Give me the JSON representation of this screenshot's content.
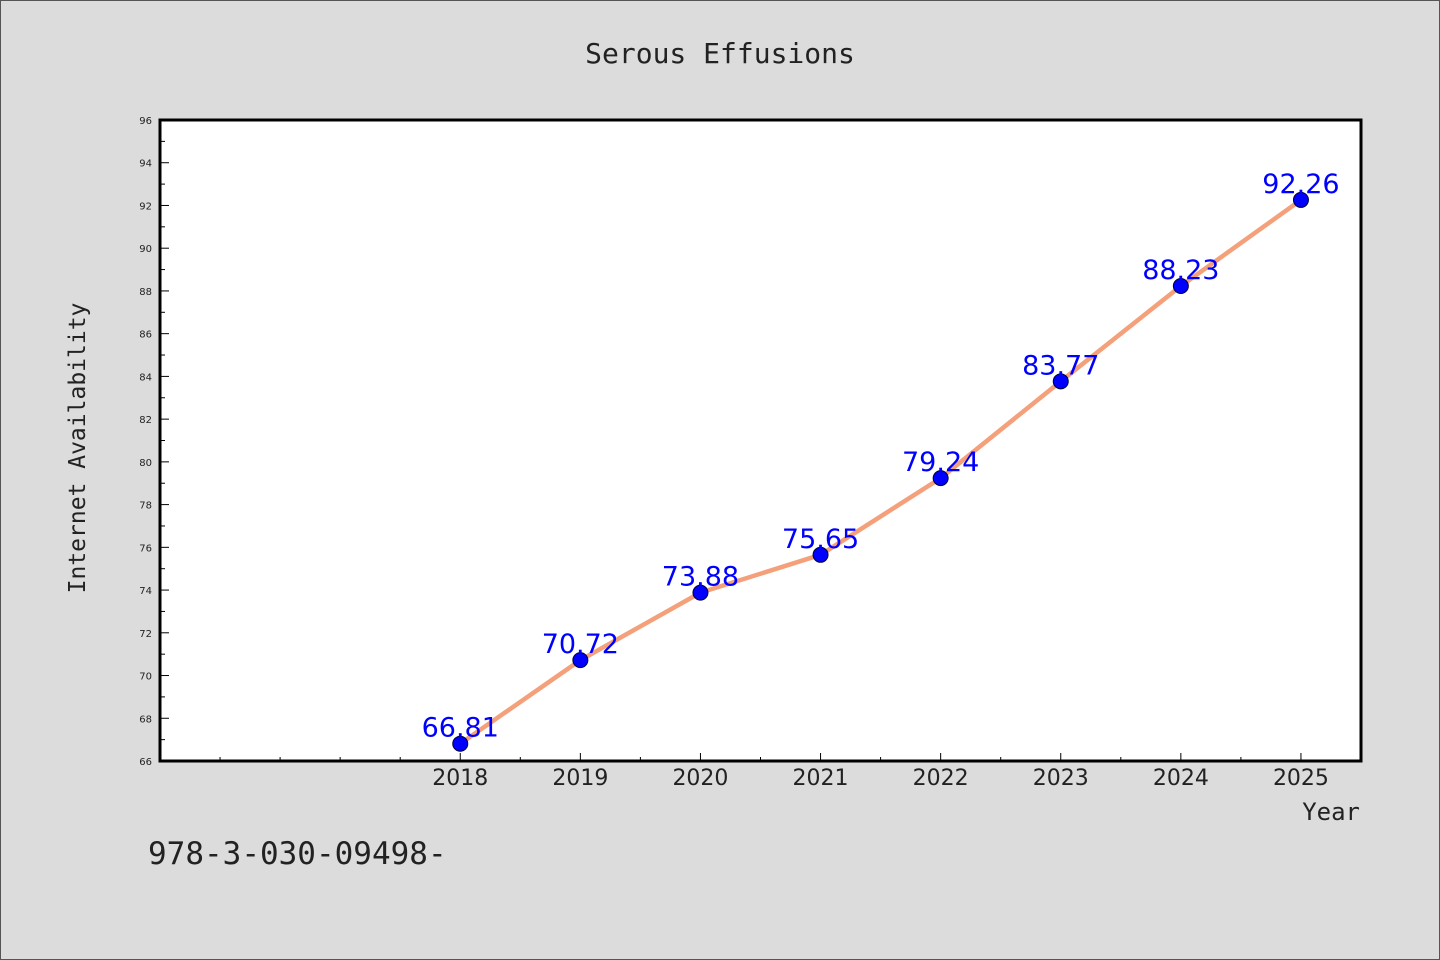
{
  "chart_data": {
    "type": "line",
    "title": "Serous Effusions",
    "xlabel": "Year",
    "ylabel": "Internet Availability",
    "x": [
      2018,
      2019,
      2020,
      2021,
      2022,
      2023,
      2024,
      2025
    ],
    "x_tick_labels": [
      "2018",
      "2019",
      "2020",
      "2021",
      "2022",
      "2023",
      "2024",
      "2025"
    ],
    "series": [
      {
        "values": [
          66.81,
          70.72,
          73.88,
          75.65,
          79.24,
          83.77,
          88.23,
          92.26
        ],
        "data_labels": [
          "66.81",
          "70.72",
          "73.88",
          "75.65",
          "79.24",
          "83.77",
          "88.23",
          "92.26"
        ]
      }
    ],
    "xlim": [
      2015.5,
      2025.5
    ],
    "ylim": [
      66,
      96
    ],
    "y_ticks": [
      66,
      68,
      70,
      72,
      74,
      76,
      78,
      80,
      82,
      84,
      86,
      88,
      90,
      92,
      94,
      96
    ],
    "grid": false,
    "line_color": "#f4a07a",
    "marker_color": "#0000ff",
    "label_color": "#0000ff",
    "background": "#dcdcdc",
    "plot_background": "#ffffff"
  },
  "footer_text": "978-3-030-09498-"
}
